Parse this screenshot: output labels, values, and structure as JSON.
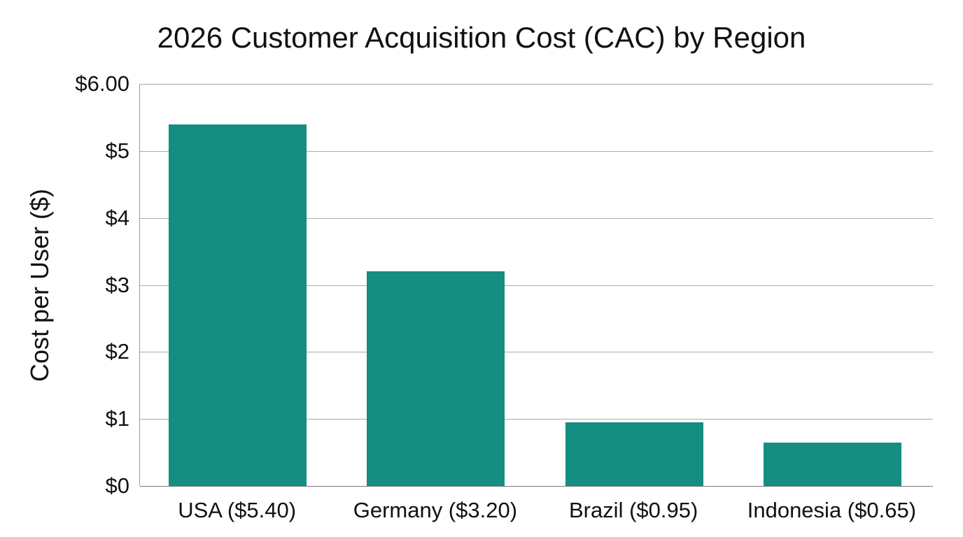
{
  "chart_data": {
    "type": "bar",
    "title": "2026 Customer Acquisition Cost (CAC) by Region",
    "xlabel": "",
    "ylabel": "Cost per User ($)",
    "categories": [
      "USA ($5.40)",
      "Germany ($3.20)",
      "Brazil ($0.95)",
      "Indonesia ($0.65)"
    ],
    "regions": [
      "USA",
      "Germany",
      "Brazil",
      "Indonesia"
    ],
    "values": [
      5.4,
      3.2,
      0.95,
      0.65
    ],
    "ylim": [
      0,
      6
    ],
    "yticks": [
      0,
      1,
      2,
      3,
      4,
      5,
      6
    ],
    "ytick_labels": [
      "$0",
      "$1",
      "$2",
      "$3",
      "$4",
      "$5",
      "$6.00"
    ],
    "grid": true,
    "legend": null,
    "bar_color": "#138e81"
  }
}
